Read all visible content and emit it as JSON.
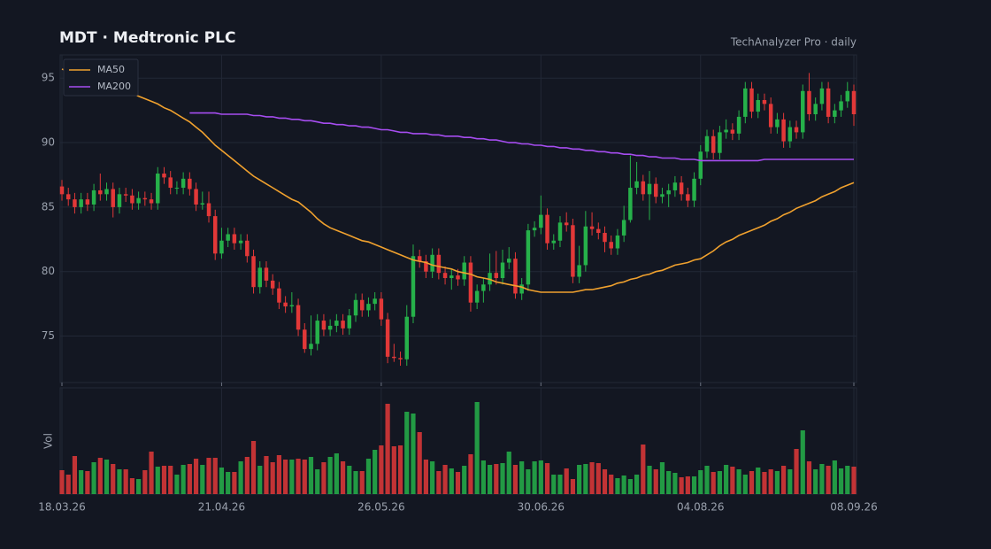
{
  "chart_data": {
    "type": "candlestick",
    "title": "MDT  ·  Medtronic PLC",
    "subtitle": "TechAnalyzer Pro · daily",
    "volume_label": "Vol",
    "up_color": "#26b14a",
    "down_color": "#e23838",
    "grid": true,
    "legend": "upper left",
    "categories": [
      "18.03.26",
      null,
      null,
      null,
      null,
      null,
      null,
      null,
      null,
      null,
      null,
      null,
      null,
      null,
      null,
      null,
      null,
      null,
      null,
      null,
      null,
      null,
      null,
      null,
      null,
      "21.04.26",
      null,
      null,
      null,
      null,
      null,
      null,
      null,
      null,
      null,
      null,
      null,
      null,
      null,
      null,
      null,
      null,
      null,
      null,
      null,
      null,
      null,
      null,
      null,
      null,
      "26.05.26",
      null,
      null,
      null,
      null,
      null,
      null,
      null,
      null,
      null,
      null,
      null,
      null,
      null,
      null,
      null,
      null,
      null,
      null,
      null,
      null,
      null,
      null,
      null,
      null,
      "30.06.26",
      null,
      null,
      null,
      null,
      null,
      null,
      null,
      null,
      null,
      null,
      null,
      null,
      null,
      null,
      null,
      null,
      null,
      null,
      null,
      null,
      null,
      null,
      null,
      null,
      "04.08.26",
      null,
      null,
      null,
      null,
      null,
      null,
      null,
      null,
      null,
      null,
      null,
      null,
      null,
      null,
      null,
      null,
      null,
      null,
      null,
      null,
      null,
      null,
      null,
      "08.09.26"
    ],
    "open": [
      86.6,
      86.0,
      85.6,
      85.0,
      85.6,
      85.2,
      86.3,
      86.0,
      86.4,
      85.0,
      86.0,
      85.9,
      85.3,
      85.7,
      85.6,
      85.3,
      87.6,
      87.3,
      86.5,
      86.5,
      87.2,
      86.4,
      85.2,
      85.3,
      84.3,
      81.4,
      82.4,
      82.9,
      82.2,
      82.4,
      81.2,
      78.8,
      80.3,
      79.3,
      78.7,
      77.6,
      77.3,
      77.4,
      75.5,
      74.0,
      74.4,
      76.2,
      75.5,
      75.8,
      76.2,
      75.6,
      76.6,
      77.8,
      77.0,
      77.5,
      77.9,
      76.3,
      73.4,
      73.3,
      73.2,
      76.5,
      81.2,
      80.8,
      80.0,
      81.3,
      79.9,
      79.5,
      79.7,
      79.4,
      80.7,
      77.6,
      78.5,
      79.0,
      79.9,
      79.5,
      80.7,
      81.0,
      78.3,
      79.0,
      83.2,
      83.4,
      84.4,
      82.2,
      82.4,
      83.8,
      83.6,
      79.6,
      80.5,
      83.5,
      83.3,
      83.0,
      82.3,
      81.8,
      82.8,
      84.0,
      86.5,
      87.0,
      86.0,
      86.8,
      85.8,
      86.0,
      86.3,
      86.9,
      86.0,
      85.5,
      87.2,
      89.3,
      90.5,
      89.2,
      90.8,
      91.0,
      90.7,
      92.0,
      94.2,
      92.4,
      93.3,
      93.0,
      91.2,
      91.8,
      90.1,
      91.2,
      90.8,
      94.0,
      92.2,
      93.0,
      94.2,
      92.0,
      92.5,
      93.2,
      94.0
    ],
    "high": [
      87.1,
      86.5,
      86.1,
      86.1,
      86.1,
      86.8,
      87.6,
      86.9,
      86.9,
      86.5,
      86.5,
      86.4,
      86.2,
      86.2,
      86.1,
      88.1,
      88.1,
      87.8,
      87.0,
      87.7,
      87.7,
      86.9,
      86.2,
      86.2,
      84.8,
      83.4,
      83.4,
      83.4,
      82.9,
      82.9,
      81.7,
      80.8,
      80.8,
      79.8,
      79.2,
      78.1,
      78.4,
      77.9,
      76.0,
      76.6,
      76.7,
      76.7,
      76.3,
      76.7,
      76.7,
      77.1,
      78.3,
      78.3,
      78.0,
      78.4,
      78.4,
      76.8,
      74.4,
      73.8,
      77.4,
      82.1,
      81.7,
      81.3,
      81.8,
      81.8,
      80.4,
      80.2,
      80.2,
      81.2,
      81.2,
      79.0,
      79.5,
      81.4,
      81.6,
      81.7,
      81.9,
      81.5,
      79.5,
      83.7,
      83.9,
      85.9,
      84.9,
      82.9,
      84.3,
      84.6,
      84.1,
      82.0,
      84.7,
      84.6,
      83.8,
      83.5,
      82.8,
      83.3,
      85.1,
      89.0,
      88.5,
      87.5,
      87.8,
      87.3,
      86.5,
      86.8,
      87.4,
      87.4,
      86.5,
      87.7,
      89.8,
      91.0,
      91.0,
      91.3,
      91.8,
      91.5,
      92.5,
      94.7,
      94.7,
      93.8,
      93.8,
      93.5,
      92.3,
      92.3,
      91.7,
      91.7,
      94.5,
      95.4,
      93.5,
      94.7,
      94.7,
      93.0,
      93.7,
      94.7,
      94.5
    ],
    "low": [
      85.5,
      85.1,
      84.5,
      84.5,
      84.7,
      84.7,
      85.5,
      85.5,
      84.2,
      84.5,
      85.4,
      84.8,
      84.8,
      85.1,
      84.8,
      84.8,
      86.8,
      86.0,
      86.0,
      86.0,
      85.9,
      84.7,
      84.8,
      83.8,
      80.9,
      81.0,
      81.9,
      81.7,
      81.7,
      80.7,
      78.3,
      78.3,
      78.8,
      78.2,
      77.1,
      76.8,
      76.8,
      75.0,
      73.7,
      73.5,
      73.9,
      75.0,
      75.0,
      75.3,
      75.1,
      75.1,
      76.1,
      76.5,
      76.5,
      77.0,
      75.8,
      72.9,
      73.0,
      72.7,
      72.7,
      76.0,
      80.3,
      79.5,
      79.5,
      79.4,
      79.0,
      78.6,
      78.9,
      78.9,
      76.9,
      77.1,
      77.6,
      78.5,
      79.0,
      79.0,
      80.2,
      77.9,
      77.8,
      78.5,
      82.7,
      82.9,
      81.7,
      81.7,
      81.9,
      83.1,
      79.1,
      79.1,
      80.0,
      82.8,
      82.5,
      81.5,
      81.3,
      81.3,
      82.3,
      83.8,
      86.0,
      85.5,
      84.0,
      85.3,
      85.3,
      85.0,
      85.8,
      85.5,
      85.0,
      85.0,
      86.7,
      88.8,
      88.7,
      88.7,
      90.3,
      90.2,
      90.2,
      91.5,
      91.9,
      91.9,
      92.5,
      90.7,
      90.7,
      89.6,
      89.6,
      90.3,
      90.3,
      91.7,
      91.7,
      92.5,
      91.5,
      91.5,
      92.0,
      92.7,
      91.3
    ],
    "close": [
      86.0,
      85.6,
      85.0,
      85.6,
      85.2,
      86.3,
      86.0,
      86.4,
      85.0,
      86.0,
      85.9,
      85.3,
      85.7,
      85.6,
      85.3,
      87.6,
      87.3,
      86.5,
      86.5,
      87.2,
      86.4,
      85.2,
      85.3,
      84.3,
      81.4,
      82.4,
      82.9,
      82.2,
      82.4,
      81.2,
      78.8,
      80.3,
      79.3,
      78.7,
      77.6,
      77.3,
      77.4,
      75.5,
      74.0,
      74.4,
      76.2,
      75.5,
      75.8,
      76.2,
      75.6,
      76.6,
      77.8,
      77.0,
      77.5,
      77.9,
      76.3,
      73.4,
      73.3,
      73.2,
      76.5,
      81.2,
      80.8,
      80.0,
      81.3,
      79.9,
      79.5,
      79.7,
      79.4,
      80.7,
      77.6,
      78.5,
      79.0,
      79.9,
      79.5,
      80.7,
      81.0,
      78.3,
      79.0,
      83.2,
      83.4,
      84.4,
      82.2,
      82.4,
      83.8,
      83.6,
      79.6,
      80.5,
      83.5,
      83.3,
      83.0,
      82.3,
      81.8,
      82.8,
      84.0,
      86.5,
      87.0,
      86.0,
      86.8,
      85.8,
      86.0,
      86.3,
      86.9,
      86.0,
      85.5,
      87.2,
      89.3,
      90.5,
      89.2,
      90.8,
      91.0,
      90.7,
      92.0,
      94.2,
      92.4,
      93.3,
      93.0,
      91.2,
      91.8,
      90.1,
      91.2,
      90.8,
      94.0,
      92.2,
      93.0,
      94.2,
      92.0,
      92.5,
      93.2,
      94.0,
      92.2
    ],
    "volume": [
      2.7,
      2.2,
      4.3,
      2.7,
      2.6,
      3.6,
      4.1,
      3.9,
      3.4,
      2.8,
      2.8,
      1.8,
      1.7,
      2.7,
      4.8,
      3.1,
      3.2,
      3.2,
      2.2,
      3.3,
      3.4,
      4.0,
      3.3,
      4.1,
      4.1,
      3.0,
      2.5,
      2.5,
      3.7,
      4.2,
      6.0,
      3.2,
      4.3,
      3.6,
      4.4,
      3.9,
      3.9,
      4.0,
      3.9,
      4.2,
      2.8,
      3.6,
      4.2,
      4.6,
      3.7,
      3.2,
      2.6,
      2.6,
      4.0,
      5.0,
      5.5,
      10.2,
      5.4,
      5.5,
      9.3,
      9.1,
      7.0,
      3.9,
      3.7,
      2.6,
      3.3,
      2.9,
      2.5,
      3.2,
      4.5,
      10.4,
      3.8,
      3.3,
      3.4,
      3.5,
      4.8,
      3.3,
      3.7,
      2.8,
      3.7,
      3.8,
      3.5,
      2.2,
      2.2,
      2.9,
      1.7,
      3.3,
      3.4,
      3.6,
      3.5,
      2.8,
      2.2,
      1.8,
      2.1,
      1.7,
      2.2,
      5.6,
      3.2,
      2.8,
      3.6,
      2.6,
      2.4,
      1.9,
      2.0,
      2.0,
      2.7,
      3.2,
      2.5,
      2.6,
      3.3,
      3.1,
      2.8,
      2.2,
      2.6,
      3.0,
      2.5,
      2.8,
      2.6,
      3.2,
      2.8,
      5.1,
      7.2,
      3.7,
      2.8,
      3.4,
      3.2,
      3.8,
      2.9,
      3.2,
      3.1
    ],
    "series": [
      {
        "name": "MA50",
        "color": "#f0a12e",
        "values": [
          95.7,
          95.5,
          95.4,
          95.2,
          95.0,
          94.9,
          94.7,
          94.5,
          94.4,
          94.2,
          94.0,
          93.8,
          93.6,
          93.4,
          93.2,
          93.0,
          92.7,
          92.5,
          92.2,
          91.9,
          91.6,
          91.2,
          90.8,
          90.3,
          89.8,
          89.4,
          89.0,
          88.6,
          88.2,
          87.8,
          87.4,
          87.1,
          86.8,
          86.5,
          86.2,
          85.9,
          85.6,
          85.4,
          85.0,
          84.6,
          84.1,
          83.7,
          83.4,
          83.2,
          83.0,
          82.8,
          82.6,
          82.4,
          82.3,
          82.1,
          81.9,
          81.7,
          81.5,
          81.3,
          81.1,
          80.9,
          80.8,
          80.7,
          80.5,
          80.4,
          80.3,
          80.2,
          80.0,
          79.9,
          79.8,
          79.6,
          79.5,
          79.4,
          79.2,
          79.1,
          79.0,
          78.9,
          78.8,
          78.6,
          78.5,
          78.4,
          78.4,
          78.4,
          78.4,
          78.4,
          78.4,
          78.5,
          78.6,
          78.6,
          78.7,
          78.8,
          78.9,
          79.1,
          79.2,
          79.4,
          79.5,
          79.7,
          79.8,
          80.0,
          80.1,
          80.3,
          80.5,
          80.6,
          80.7,
          80.9,
          81.0,
          81.3,
          81.6,
          82.0,
          82.3,
          82.5,
          82.8,
          83.0,
          83.2,
          83.4,
          83.6,
          83.9,
          84.1,
          84.4,
          84.6,
          84.9,
          85.1,
          85.3,
          85.5,
          85.8,
          86.0,
          86.2,
          86.5,
          86.7,
          86.9
        ]
      },
      {
        "name": "MA200",
        "color": "#a64df0",
        "values": [
          null,
          null,
          null,
          null,
          null,
          null,
          null,
          null,
          null,
          null,
          null,
          null,
          null,
          null,
          null,
          null,
          null,
          null,
          null,
          null,
          92.3,
          92.3,
          92.3,
          92.3,
          92.3,
          92.2,
          92.2,
          92.2,
          92.2,
          92.2,
          92.1,
          92.1,
          92.0,
          92.0,
          91.9,
          91.9,
          91.8,
          91.8,
          91.7,
          91.7,
          91.6,
          91.5,
          91.5,
          91.4,
          91.4,
          91.3,
          91.3,
          91.2,
          91.2,
          91.1,
          91.0,
          91.0,
          90.9,
          90.8,
          90.8,
          90.7,
          90.7,
          90.7,
          90.6,
          90.6,
          90.5,
          90.5,
          90.5,
          90.4,
          90.4,
          90.3,
          90.3,
          90.2,
          90.2,
          90.1,
          90.0,
          90.0,
          89.9,
          89.9,
          89.8,
          89.8,
          89.7,
          89.7,
          89.6,
          89.6,
          89.5,
          89.5,
          89.4,
          89.4,
          89.3,
          89.3,
          89.2,
          89.2,
          89.1,
          89.1,
          89.0,
          89.0,
          88.9,
          88.9,
          88.8,
          88.8,
          88.8,
          88.7,
          88.7,
          88.7,
          88.6,
          88.6,
          88.6,
          88.6,
          88.6,
          88.6,
          88.6,
          88.6,
          88.6,
          88.6,
          88.7,
          88.7,
          88.7,
          88.7,
          88.7,
          88.7,
          88.7,
          88.7,
          88.7,
          88.7,
          88.7,
          88.7,
          88.7,
          88.7,
          88.7
        ]
      }
    ],
    "ylim": [
      71.4,
      96.8
    ],
    "yticks": [
      75,
      80,
      85,
      90,
      95
    ],
    "vol_ylim": [
      0,
      12
    ]
  }
}
